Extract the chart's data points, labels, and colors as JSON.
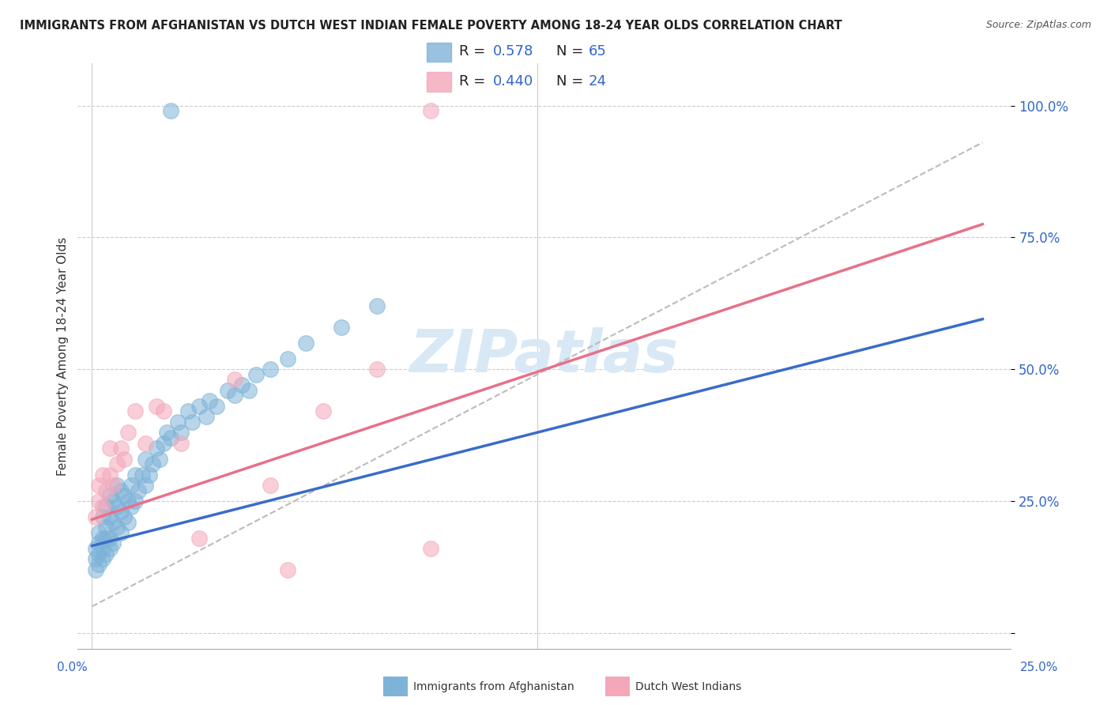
{
  "title": "IMMIGRANTS FROM AFGHANISTAN VS DUTCH WEST INDIAN FEMALE POVERTY AMONG 18-24 YEAR OLDS CORRELATION CHART",
  "source": "Source: ZipAtlas.com",
  "ylabel": "Female Poverty Among 18-24 Year Olds",
  "legend_R1": "0.578",
  "legend_N1": "65",
  "legend_R2": "0.440",
  "legend_N2": "24",
  "blue_color": "#7EB3D8",
  "pink_color": "#F4A7B9",
  "trend_blue": "#3A6CC8",
  "trend_pink": "#E8708A",
  "trend_gray": "#BBBBBB",
  "label_blue": "Immigrants from Afghanistan",
  "label_pink": "Dutch West Indians",
  "text_color_value": "#3366CC",
  "watermark_color": "#D8E8F5",
  "bg_color": "#FFFFFF",
  "grid_color": "#CCCCCC",
  "ytick_color": "#3366CC",
  "title_color": "#222222",
  "blue_x": [
    0.001,
    0.001,
    0.001,
    0.002,
    0.002,
    0.002,
    0.002,
    0.003,
    0.003,
    0.003,
    0.003,
    0.004,
    0.004,
    0.004,
    0.004,
    0.005,
    0.005,
    0.005,
    0.005,
    0.006,
    0.006,
    0.006,
    0.007,
    0.007,
    0.007,
    0.008,
    0.008,
    0.008,
    0.009,
    0.009,
    0.01,
    0.01,
    0.011,
    0.011,
    0.012,
    0.012,
    0.013,
    0.014,
    0.015,
    0.015,
    0.016,
    0.017,
    0.018,
    0.019,
    0.02,
    0.021,
    0.022,
    0.024,
    0.025,
    0.027,
    0.028,
    0.03,
    0.032,
    0.033,
    0.035,
    0.038,
    0.04,
    0.042,
    0.044,
    0.046,
    0.05,
    0.055,
    0.06,
    0.07,
    0.08
  ],
  "blue_y": [
    0.12,
    0.14,
    0.16,
    0.13,
    0.15,
    0.17,
    0.19,
    0.14,
    0.16,
    0.18,
    0.22,
    0.15,
    0.18,
    0.2,
    0.24,
    0.16,
    0.18,
    0.22,
    0.26,
    0.17,
    0.21,
    0.25,
    0.2,
    0.24,
    0.28,
    0.19,
    0.23,
    0.27,
    0.22,
    0.26,
    0.21,
    0.25,
    0.24,
    0.28,
    0.25,
    0.3,
    0.27,
    0.3,
    0.28,
    0.33,
    0.3,
    0.32,
    0.35,
    0.33,
    0.36,
    0.38,
    0.37,
    0.4,
    0.38,
    0.42,
    0.4,
    0.43,
    0.41,
    0.44,
    0.43,
    0.46,
    0.45,
    0.47,
    0.46,
    0.49,
    0.5,
    0.52,
    0.55,
    0.58,
    0.62
  ],
  "pink_x": [
    0.001,
    0.002,
    0.002,
    0.003,
    0.003,
    0.004,
    0.005,
    0.005,
    0.006,
    0.007,
    0.008,
    0.009,
    0.01,
    0.012,
    0.015,
    0.018,
    0.02,
    0.025,
    0.03,
    0.04,
    0.05,
    0.065,
    0.08,
    0.095
  ],
  "pink_y": [
    0.22,
    0.25,
    0.28,
    0.24,
    0.3,
    0.27,
    0.3,
    0.35,
    0.28,
    0.32,
    0.35,
    0.33,
    0.38,
    0.42,
    0.36,
    0.43,
    0.42,
    0.36,
    0.18,
    0.48,
    0.28,
    0.42,
    0.5,
    0.16
  ],
  "blue_outlier_x": [
    0.022
  ],
  "blue_outlier_y": [
    0.99
  ],
  "pink_outlier_high_x": [
    0.095
  ],
  "pink_outlier_high_y": [
    0.99
  ],
  "pink_outlier_low_x": [
    0.055
  ],
  "pink_outlier_low_y": [
    0.12
  ]
}
